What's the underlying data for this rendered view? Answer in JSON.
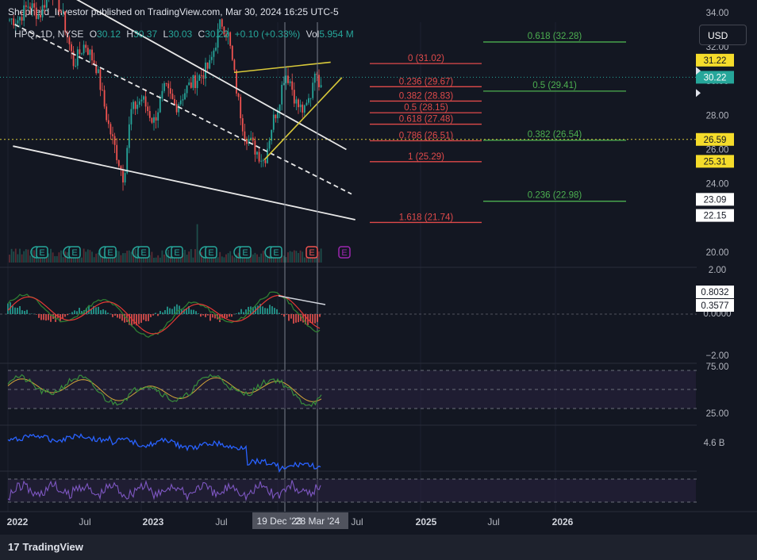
{
  "header": {
    "publisher": "Shepherd_Investor published on TradingView.com, Mar 30, 2024 16:25 UTC-5",
    "symbol": "HPQ, 1D, NYSE",
    "open_label": "O",
    "open": "30.12",
    "high_label": "H",
    "high": "30.37",
    "low_label": "L",
    "low": "30.03",
    "close_label": "C",
    "close": "30.22",
    "change": "+0.10 (+0.33%)",
    "vol_label": "Vol",
    "vol": "5.954 M"
  },
  "currency_button": "USD",
  "footer": {
    "logo_mark": "17",
    "logo_text": "TradingView"
  },
  "colors": {
    "background": "#131722",
    "up": "#26a69a",
    "down": "#ef5350",
    "fib_red": "#e04a4a",
    "fib_green": "#4caf50",
    "wedge": "#d8c93a",
    "macd_line": "#2e7d32",
    "signal_line": "#e53935",
    "rsi": "#388e3c",
    "obv": "#2962ff",
    "stoch": "#7e57c2",
    "earnings_badge": "#26a69a",
    "dividend_badge": "#9c27b0"
  },
  "chart_data": {
    "type": "candlestick",
    "symbol": "HPQ",
    "interval": "1D",
    "exchange": "NYSE",
    "price_axis": {
      "ticks": [
        "34.00",
        "32.00",
        "30.00",
        "28.00",
        "26.00",
        "24.00",
        "22.00",
        "20.00"
      ],
      "ylim": [
        19.5,
        34.5
      ]
    },
    "time_axis": {
      "ticks": [
        "2022",
        "Jul",
        "2023",
        "Jul",
        "Mar '24",
        "Jul",
        "2025",
        "Jul",
        "2026"
      ],
      "crosshair_labels": [
        "19 Dec '23",
        "28 Mar '24"
      ]
    },
    "price_path": [
      {
        "date": "2022-01-03",
        "close": 33.6
      },
      {
        "date": "2022-02-01",
        "close": 34.5
      },
      {
        "date": "2022-03-01",
        "close": 33.8
      },
      {
        "date": "2022-04-01",
        "close": 35.6
      },
      {
        "date": "2022-05-01",
        "close": 33.9
      },
      {
        "date": "2022-06-01",
        "close": 31.0
      },
      {
        "date": "2022-07-01",
        "close": 32.2
      },
      {
        "date": "2022-08-01",
        "close": 30.8
      },
      {
        "date": "2022-09-01",
        "close": 27.5
      },
      {
        "date": "2022-10-01",
        "close": 25.2
      },
      {
        "date": "2022-10-13",
        "close": 24.3
      },
      {
        "date": "2022-11-01",
        "close": 28.2
      },
      {
        "date": "2022-12-01",
        "close": 29.0
      },
      {
        "date": "2023-01-01",
        "close": 27.6
      },
      {
        "date": "2023-02-01",
        "close": 29.6
      },
      {
        "date": "2023-03-01",
        "close": 28.5
      },
      {
        "date": "2023-04-01",
        "close": 29.6
      },
      {
        "date": "2023-05-01",
        "close": 30.2
      },
      {
        "date": "2023-06-01",
        "close": 30.9
      },
      {
        "date": "2023-07-01",
        "close": 33.5
      },
      {
        "date": "2023-07-20",
        "close": 32.7
      },
      {
        "date": "2023-08-15",
        "close": 29.0
      },
      {
        "date": "2023-09-01",
        "close": 27.0
      },
      {
        "date": "2023-10-01",
        "close": 26.0
      },
      {
        "date": "2023-10-25",
        "close": 25.3
      },
      {
        "date": "2023-11-15",
        "close": 27.5
      },
      {
        "date": "2023-12-01",
        "close": 28.6
      },
      {
        "date": "2023-12-19",
        "close": 30.5
      },
      {
        "date": "2024-01-01",
        "close": 30.1
      },
      {
        "date": "2024-01-20",
        "close": 28.6
      },
      {
        "date": "2024-02-10",
        "close": 28.2
      },
      {
        "date": "2024-02-28",
        "close": 29.3
      },
      {
        "date": "2024-03-08",
        "close": 30.9
      },
      {
        "date": "2024-03-15",
        "close": 29.9
      },
      {
        "date": "2024-03-28",
        "close": 30.22
      }
    ],
    "price_badges": [
      {
        "label": "31.22",
        "style": "yellow"
      },
      {
        "label": "30.22",
        "style": "teal"
      },
      {
        "label": "26.59",
        "style": "yellow"
      },
      {
        "label": "25.31",
        "style": "yellow"
      },
      {
        "label": "23.09",
        "style": "white"
      },
      {
        "label": "22.15",
        "style": "white"
      }
    ],
    "fib_retracement": [
      {
        "label": "0 (31.02)",
        "price": 31.02
      },
      {
        "label": "0.236 (29.67)",
        "price": 29.67
      },
      {
        "label": "0.382 (28.83)",
        "price": 28.83
      },
      {
        "label": "0.5 (28.15)",
        "price": 28.15
      },
      {
        "label": "0.618 (27.48)",
        "price": 27.48
      },
      {
        "label": "0.786 (26.51)",
        "price": 26.51
      },
      {
        "label": "1 (25.29)",
        "price": 25.29
      },
      {
        "label": "1.618 (21.74)",
        "price": 21.74
      }
    ],
    "fib_extension": [
      {
        "label": "0.618 (32.28)",
        "price": 32.28
      },
      {
        "label": "0.5 (29.41)",
        "price": 29.41
      },
      {
        "label": "0.382 (26.54)",
        "price": 26.54
      },
      {
        "label": "0.236 (22.98)",
        "price": 22.98
      }
    ],
    "trendlines": [
      {
        "name": "upper-channel",
        "from": {
          "date": "2021-12-15",
          "price": 36.9
        },
        "to": {
          "date": "2024-06-01",
          "price": 26.0
        },
        "style": "solid"
      },
      {
        "name": "mid-channel",
        "from": {
          "date": "2021-12-25",
          "price": 33.3
        },
        "to": {
          "date": "2024-06-15",
          "price": 23.4
        },
        "style": "dashed"
      },
      {
        "name": "lower-channel",
        "from": {
          "date": "2021-12-20",
          "price": 26.2
        },
        "to": {
          "date": "2024-06-25",
          "price": 21.9
        },
        "style": "solid"
      },
      {
        "name": "wedge-top",
        "from": {
          "date": "2023-08-05",
          "price": 30.5
        },
        "to": {
          "date": "2024-04-20",
          "price": 31.1
        },
        "style": "solid"
      },
      {
        "name": "wedge-bottom",
        "from": {
          "date": "2023-10-25",
          "price": 25.4
        },
        "to": {
          "date": "2024-05-20",
          "price": 30.2
        },
        "style": "solid"
      }
    ],
    "event_markers": [
      {
        "type": "earnings",
        "label": "E",
        "count": 9
      },
      {
        "type": "earnings-upcoming",
        "label": "E",
        "count": 1
      },
      {
        "type": "dividend",
        "label": "E",
        "count": 1
      }
    ],
    "indicators": [
      {
        "name": "MACD",
        "ticks": [
          "2.00",
          "0.0000",
          "−2.00"
        ],
        "values": {
          "macd": "0.8032",
          "signal": "0.3577"
        }
      },
      {
        "name": "RSI",
        "ticks": [
          "75.00",
          "25.00"
        ]
      },
      {
        "name": "OBV",
        "ticks": [
          "4.6 B"
        ]
      },
      {
        "name": "Stochastic",
        "ticks": []
      }
    ]
  }
}
